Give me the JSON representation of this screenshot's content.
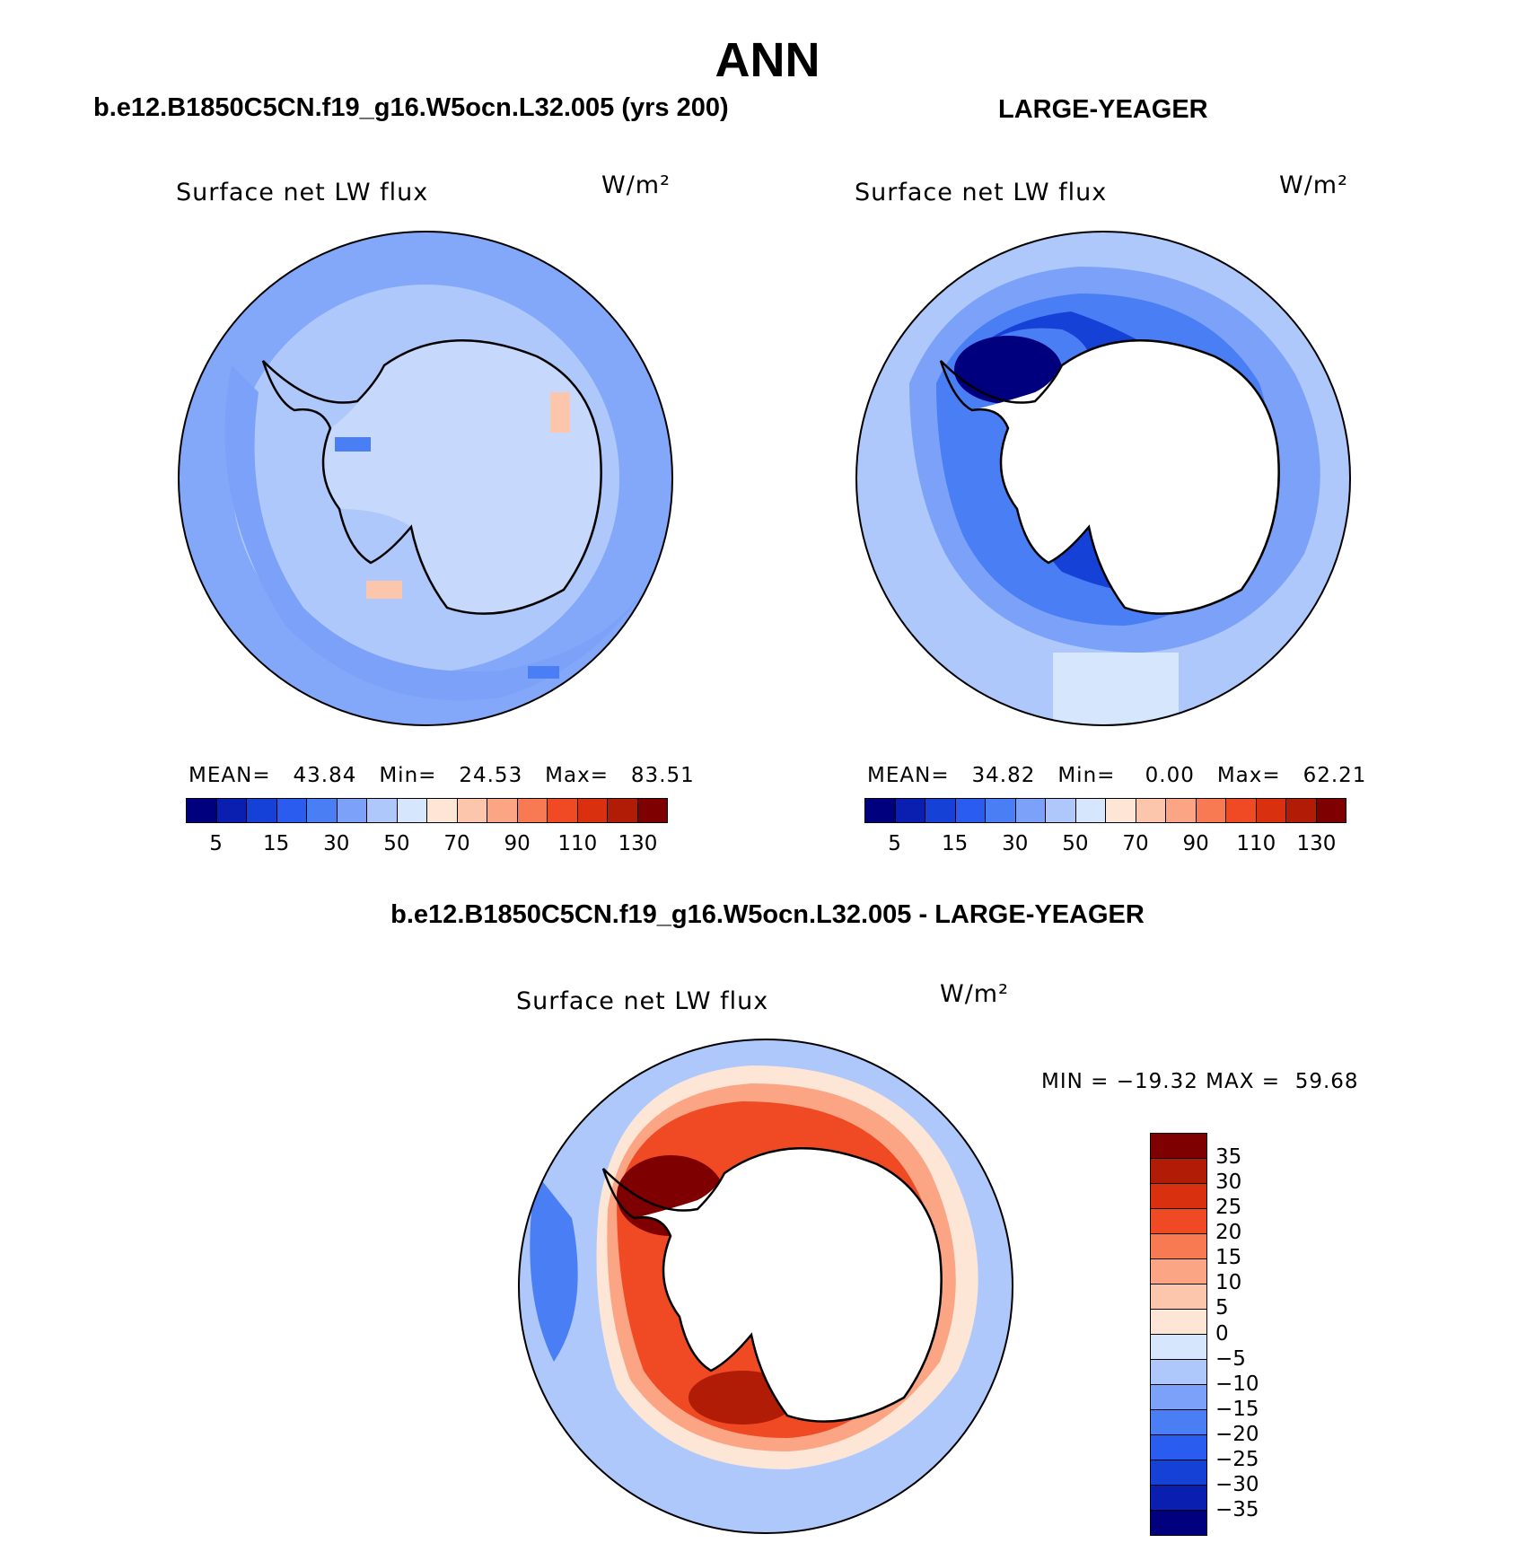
{
  "figure": {
    "title": "ANN",
    "left_title": "b.e12.B1850C5CN.f19_g16.W5ocn.L32.005 (yrs 200)",
    "right_title": "LARGE-YEAGER",
    "diff_title": "b.e12.B1850C5CN.f19_g16.W5ocn.L32.005 - LARGE-YEAGER"
  },
  "panels": [
    {
      "variable": "Surface net LW flux",
      "units": "W/m²",
      "stats": {
        "mean_label": "MEAN=",
        "mean": "43.84",
        "min_label": "Min=",
        "min": "24.53",
        "max_label": "Max=",
        "max": "83.51"
      }
    },
    {
      "variable": "Surface net LW flux",
      "units": "W/m²",
      "stats": {
        "mean_label": "MEAN=",
        "mean": "34.82",
        "min_label": "Min=",
        "min": "0.00",
        "max_label": "Max=",
        "max": "62.21"
      }
    },
    {
      "variable": "Surface net LW flux",
      "units": "W/m²",
      "stats_text": "MIN = −19.32 MAX =  59.68"
    }
  ],
  "colorbars": {
    "abs": {
      "colors": [
        "#00007f",
        "#0a1fb0",
        "#1541d6",
        "#2a5cf0",
        "#4a7ef5",
        "#7ba2f8",
        "#aec8fb",
        "#d6e6fd",
        "#fde6d6",
        "#fcc6ad",
        "#fba585",
        "#f77a52",
        "#ef4a24",
        "#d9300f",
        "#b01c06",
        "#7f0000"
      ],
      "ticks": [
        "5",
        "15",
        "30",
        "50",
        "70",
        "90",
        "110",
        "130"
      ]
    },
    "diff": {
      "colors": [
        "#7f0000",
        "#b01c06",
        "#d9300f",
        "#ef4a24",
        "#f77a52",
        "#fba585",
        "#fcc6ad",
        "#fde6d6",
        "#d6e6fd",
        "#aec8fb",
        "#7ba2f8",
        "#4a7ef5",
        "#2a5cf0",
        "#1541d6",
        "#0a1fb0",
        "#00007f"
      ],
      "ticks": [
        "35",
        "30",
        "25",
        "20",
        "15",
        "10",
        "5",
        "0",
        "−5",
        "−10",
        "−15",
        "−20",
        "−25",
        "−30",
        "−35"
      ]
    }
  }
}
